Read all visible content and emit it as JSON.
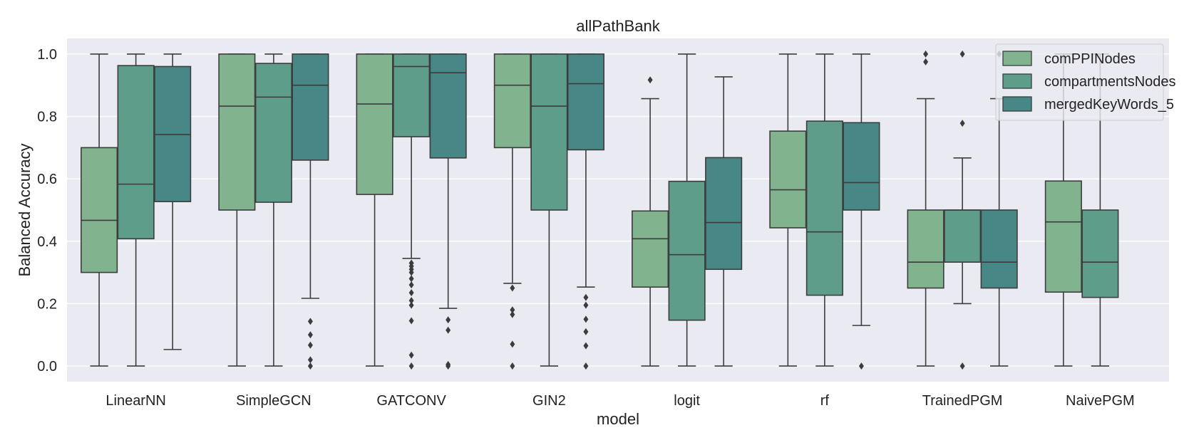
{
  "chart_data": {
    "type": "box",
    "title": "allPathBank",
    "xlabel": "model",
    "ylabel": "Balanced Accuracy",
    "ylim": [
      -0.05,
      1.05
    ],
    "yticks": [
      0.0,
      0.2,
      0.4,
      0.6,
      0.8,
      1.0
    ],
    "ytick_labels": [
      "0.0",
      "0.2",
      "0.4",
      "0.6",
      "0.8",
      "1.0"
    ],
    "grid": true,
    "legend_position": "top-right",
    "categories": [
      "LinearNN",
      "SimpleGCN",
      "GATCONV",
      "GIN2",
      "logit",
      "rf",
      "TrainedPGM",
      "NaivePGM"
    ],
    "series": [
      {
        "name": "comPPINodes",
        "color": "#82b38f",
        "boxes": [
          {
            "whislo": 0.0,
            "q1": 0.3,
            "med": 0.467,
            "q3": 0.7,
            "whishi": 1.0,
            "fliers": []
          },
          {
            "whislo": 0.0,
            "q1": 0.5,
            "med": 0.833,
            "q3": 1.0,
            "whishi": 1.0,
            "fliers": []
          },
          {
            "whislo": 0.0,
            "q1": 0.55,
            "med": 0.84,
            "q3": 1.0,
            "whishi": 1.0,
            "fliers": []
          },
          {
            "whislo": 0.265,
            "q1": 0.7,
            "med": 0.9,
            "q3": 1.0,
            "whishi": 1.0,
            "fliers": [
              0.25,
              0.18,
              0.165,
              0.07,
              0.0
            ]
          },
          {
            "whislo": 0.0,
            "q1": 0.253,
            "med": 0.408,
            "q3": 0.497,
            "whishi": 0.857,
            "fliers": [
              0.917
            ]
          },
          {
            "whislo": 0.0,
            "q1": 0.443,
            "med": 0.565,
            "q3": 0.753,
            "whishi": 1.0,
            "fliers": []
          },
          {
            "whislo": 0.0,
            "q1": 0.25,
            "med": 0.333,
            "q3": 0.5,
            "whishi": 0.857,
            "fliers": [
              0.975,
              1.0
            ]
          },
          {
            "whislo": 0.0,
            "q1": 0.237,
            "med": 0.462,
            "q3": 0.593,
            "whishi": 1.0,
            "fliers": []
          }
        ]
      },
      {
        "name": "compartmentsNodes",
        "color": "#5f9d8b",
        "boxes": [
          {
            "whislo": 0.0,
            "q1": 0.408,
            "med": 0.583,
            "q3": 0.963,
            "whishi": 1.0,
            "fliers": []
          },
          {
            "whislo": 0.0,
            "q1": 0.525,
            "med": 0.862,
            "q3": 0.97,
            "whishi": 1.0,
            "fliers": []
          },
          {
            "whislo": 0.345,
            "q1": 0.735,
            "med": 0.96,
            "q3": 1.0,
            "whishi": 1.0,
            "fliers": [
              0.33,
              0.32,
              0.31,
              0.3,
              0.28,
              0.26,
              0.235,
              0.21,
              0.195,
              0.145,
              0.035,
              0.0
            ]
          },
          {
            "whislo": 0.0,
            "q1": 0.5,
            "med": 0.833,
            "q3": 1.0,
            "whishi": 1.0,
            "fliers": []
          },
          {
            "whislo": 0.0,
            "q1": 0.147,
            "med": 0.357,
            "q3": 0.592,
            "whishi": 1.0,
            "fliers": []
          },
          {
            "whislo": 0.0,
            "q1": 0.227,
            "med": 0.43,
            "q3": 0.785,
            "whishi": 1.0,
            "fliers": []
          },
          {
            "whislo": 0.2,
            "q1": 0.333,
            "med": 0.5,
            "q3": 0.5,
            "whishi": 0.667,
            "fliers": [
              0.778,
              1.0,
              0.0
            ]
          },
          {
            "whislo": 0.0,
            "q1": 0.22,
            "med": 0.333,
            "q3": 0.5,
            "whishi": 1.0,
            "fliers": []
          }
        ]
      },
      {
        "name": "mergedKeyWords_5",
        "color": "#478886",
        "boxes": [
          {
            "whislo": 0.053,
            "q1": 0.527,
            "med": 0.742,
            "q3": 0.96,
            "whishi": 1.0,
            "fliers": []
          },
          {
            "whislo": 0.217,
            "q1": 0.66,
            "med": 0.9,
            "q3": 1.0,
            "whishi": 1.0,
            "fliers": [
              0.143,
              0.1,
              0.067,
              0.02,
              0.0
            ]
          },
          {
            "whislo": 0.185,
            "q1": 0.667,
            "med": 0.94,
            "q3": 1.0,
            "whishi": 1.0,
            "fliers": [
              0.148,
              0.115,
              0.005,
              0.0
            ]
          },
          {
            "whislo": 0.253,
            "q1": 0.693,
            "med": 0.905,
            "q3": 1.0,
            "whishi": 1.0,
            "fliers": [
              0.22,
              0.195,
              0.15,
              0.11,
              0.065,
              0.0
            ]
          },
          {
            "whislo": 0.0,
            "q1": 0.31,
            "med": 0.46,
            "q3": 0.668,
            "whishi": 0.927,
            "fliers": []
          },
          {
            "whislo": 0.13,
            "q1": 0.5,
            "med": 0.588,
            "q3": 0.78,
            "whishi": 1.0,
            "fliers": [
              0.0
            ]
          },
          {
            "whislo": 0.0,
            "q1": 0.25,
            "med": 0.333,
            "q3": 0.5,
            "whishi": 0.857,
            "fliers": [
              1.0
            ]
          },
          null
        ]
      }
    ]
  }
}
